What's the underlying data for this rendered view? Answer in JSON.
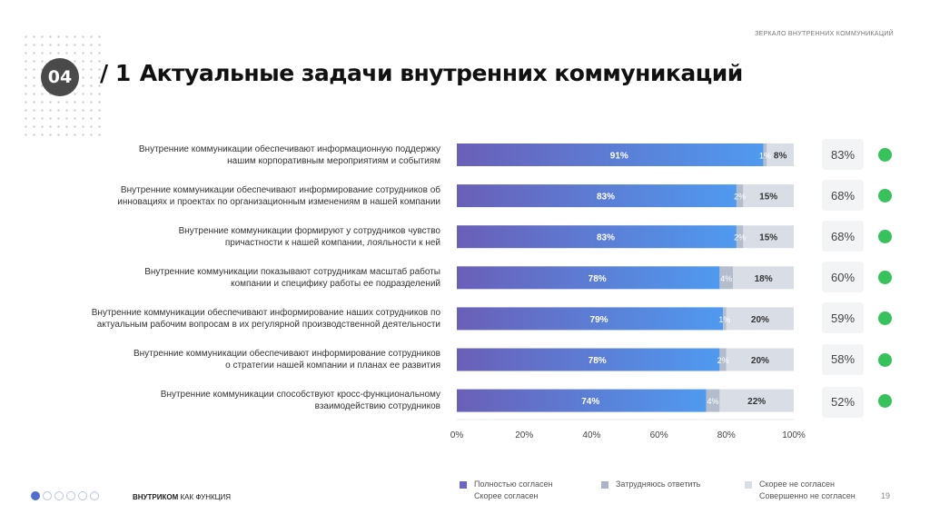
{
  "header": {
    "section_caption": "ЗЕРКАЛО ВНУТРЕННИХ КОММУНИКАЦИЙ",
    "badge": "04",
    "title_number": "/ 1",
    "title": "Актуальные задачи внутренних коммуникаций"
  },
  "colors": {
    "agree_start": "#6a5fb8",
    "agree_end": "#4f9af0",
    "hard": "#b3bdcc",
    "disagree": "#d8dde6",
    "status_green": "#37c25c"
  },
  "chart_data": {
    "type": "bar",
    "orientation": "horizontal",
    "stacked": true,
    "categories": [
      "Внутренние коммуникации обеспечивают информационную поддержку нашим корпоративным мероприятиям и событиям",
      "Внутренние коммуникации обеспечивают информирование сотрудников об инновациях и проектах по организационным изменениям в нашей компании",
      "Внутренние коммуникации формируют у сотрудников чувство причастности к нашей компании, лояльности к ней",
      "Внутренние коммуникации показывают сотрудникам масштаб работы компании и специфику работы ее подразделений",
      "Внутренние коммуникации обеспечивают информирование наших сотрудников по актуальным рабочим вопросам в их регулярной производственной деятельности",
      "Внутренние коммуникации обеспечивают информирование сотрудников о стратегии нашей компании и планах ее развития",
      "Внутренние коммуникации способствуют кросс-функциональному взаимодействию сотрудников"
    ],
    "category_lines": [
      [
        "Внутренние коммуникации обеспечивают информационную поддержку",
        "нашим корпоративным мероприятиям и событиям"
      ],
      [
        "Внутренние коммуникации обеспечивают информирование сотрудников об",
        "инновациях и проектах по организационным изменениям в нашей компании"
      ],
      [
        "Внутренние коммуникации формируют у сотрудников чувство",
        "причастности к нашей компании, лояльности к ней"
      ],
      [
        "Внутренние коммуникации показывают сотрудникам масштаб работы",
        "компании и специфику работы ее подразделений"
      ],
      [
        "Внутренние коммуникации обеспечивают информирование наших сотрудников по",
        "актуальным рабочим вопросам в их регулярной производственной деятельности"
      ],
      [
        "Внутренние коммуникации обеспечивают информирование сотрудников",
        "о стратегии нашей компании и планах ее развития"
      ],
      [
        "Внутренние коммуникации способствуют кросс-функциональному",
        "взаимодействию сотрудников"
      ]
    ],
    "series": [
      {
        "name": "Полностью согласен / Скорее согласен",
        "values": [
          91,
          83,
          83,
          78,
          79,
          78,
          74
        ]
      },
      {
        "name": "Затрудняюсь ответить",
        "values": [
          1,
          2,
          2,
          4,
          1,
          2,
          4
        ]
      },
      {
        "name": "Скорее не согласен / Совершенно не согласен",
        "values": [
          8,
          15,
          15,
          18,
          20,
          20,
          22
        ]
      }
    ],
    "xlim": [
      0,
      100
    ],
    "xticks": [
      "0%",
      "20%",
      "40%",
      "60%",
      "80%",
      "100%"
    ],
    "value_suffix": "%",
    "comparison_values": [
      "83%",
      "68%",
      "68%",
      "60%",
      "59%",
      "58%",
      "52%"
    ],
    "comparison_status": [
      "green",
      "green",
      "green",
      "green",
      "green",
      "green",
      "green"
    ]
  },
  "legend": [
    {
      "lines": [
        "Полностью согласен",
        "Скорее согласен"
      ],
      "color": "#6a66c2"
    },
    {
      "lines": [
        "Затрудняюсь ответить"
      ],
      "color": "#aab4c4"
    },
    {
      "lines": [
        "Скорее не согласен",
        "Совершенно не согласен"
      ],
      "color": "#d8dde6"
    }
  ],
  "footer": {
    "title_bold": "ВНУТРИКОМ",
    "title_rest": " КАК ФУНКЦИЯ",
    "page_number": "19",
    "pager_count": 6,
    "pager_active": 0
  }
}
